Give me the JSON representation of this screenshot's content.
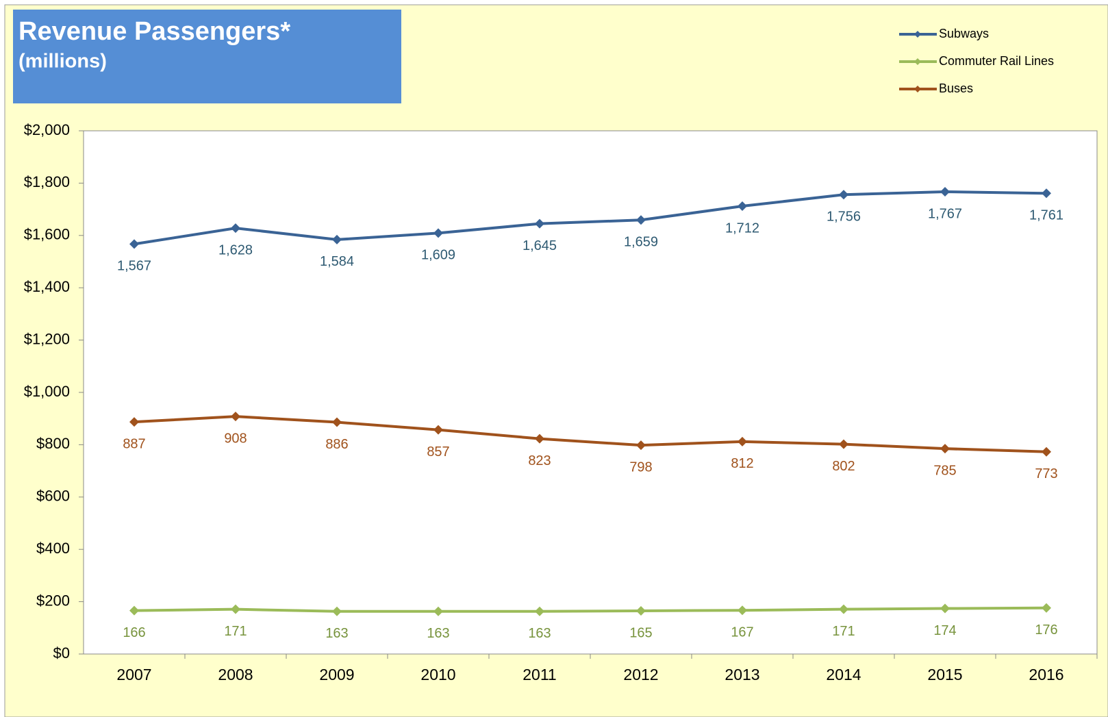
{
  "chart_data": {
    "type": "line",
    "title": "Revenue Passengers*",
    "subtitle": "(millions)",
    "categories": [
      "2007",
      "2008",
      "2009",
      "2010",
      "2011",
      "2012",
      "2013",
      "2014",
      "2015",
      "2016"
    ],
    "series": [
      {
        "name": "Subways",
        "color": "#3a6395",
        "values": [
          1567,
          1628,
          1584,
          1609,
          1645,
          1659,
          1712,
          1756,
          1767,
          1761
        ],
        "value_labels": [
          "1,567",
          "1,628",
          "1,584",
          "1,609",
          "1,645",
          "1,659",
          "1,712",
          "1,756",
          "1,767",
          "1,761"
        ]
      },
      {
        "name": "Commuter Rail Lines",
        "color": "#9bbb59",
        "values": [
          166,
          171,
          163,
          163,
          163,
          165,
          167,
          171,
          174,
          176
        ]
      },
      {
        "name": "Buses",
        "color": "#a0521c",
        "values": [
          887,
          908,
          886,
          857,
          823,
          798,
          812,
          802,
          785,
          773
        ]
      }
    ],
    "ylim": [
      0,
      2000
    ],
    "yticks": [
      {
        "value": 0,
        "label": "$0"
      },
      {
        "value": 200,
        "label": "$200"
      },
      {
        "value": 400,
        "label": "$400"
      },
      {
        "value": 600,
        "label": "$600"
      },
      {
        "value": 800,
        "label": "$800"
      },
      {
        "value": 1000,
        "label": "$1,000"
      },
      {
        "value": 1200,
        "label": "$1,200"
      },
      {
        "value": 1400,
        "label": "$1,400"
      },
      {
        "value": 1600,
        "label": "$1,600"
      },
      {
        "value": 1800,
        "label": "$1,800"
      },
      {
        "value": 2000,
        "label": "$2,000"
      }
    ],
    "legend": "top-right"
  }
}
